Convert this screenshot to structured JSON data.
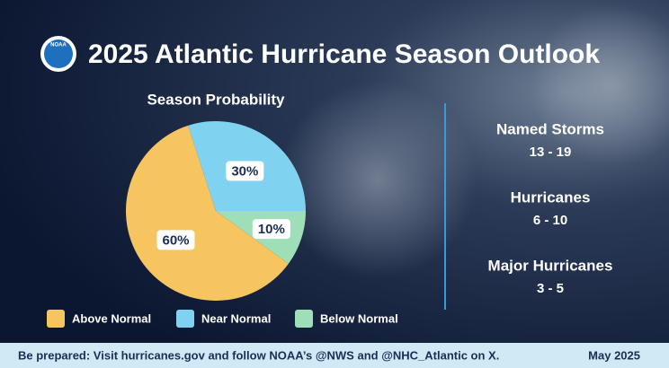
{
  "header": {
    "logo": "NOAA",
    "title": "2025 Atlantic Hurricane Season Outlook"
  },
  "chart_data": {
    "type": "pie",
    "title": "Season Probability",
    "categories": [
      "Above Normal",
      "Near Normal",
      "Below Normal"
    ],
    "values": [
      60,
      30,
      10
    ],
    "value_labels": [
      "60%",
      "30%",
      "10%"
    ],
    "colors": [
      "#f6c55f",
      "#7fd3f0",
      "#9fdfb7"
    ]
  },
  "stats": [
    {
      "label": "Named Storms",
      "value": "13 - 19"
    },
    {
      "label": "Hurricanes",
      "value": "6 - 10"
    },
    {
      "label": "Major Hurricanes",
      "value": "3 - 5"
    }
  ],
  "footer": {
    "text": "Be prepared: Visit hurricanes.gov and follow NOAA’s @NWS and @NHC_Atlantic on X.",
    "date": "May 2025"
  }
}
